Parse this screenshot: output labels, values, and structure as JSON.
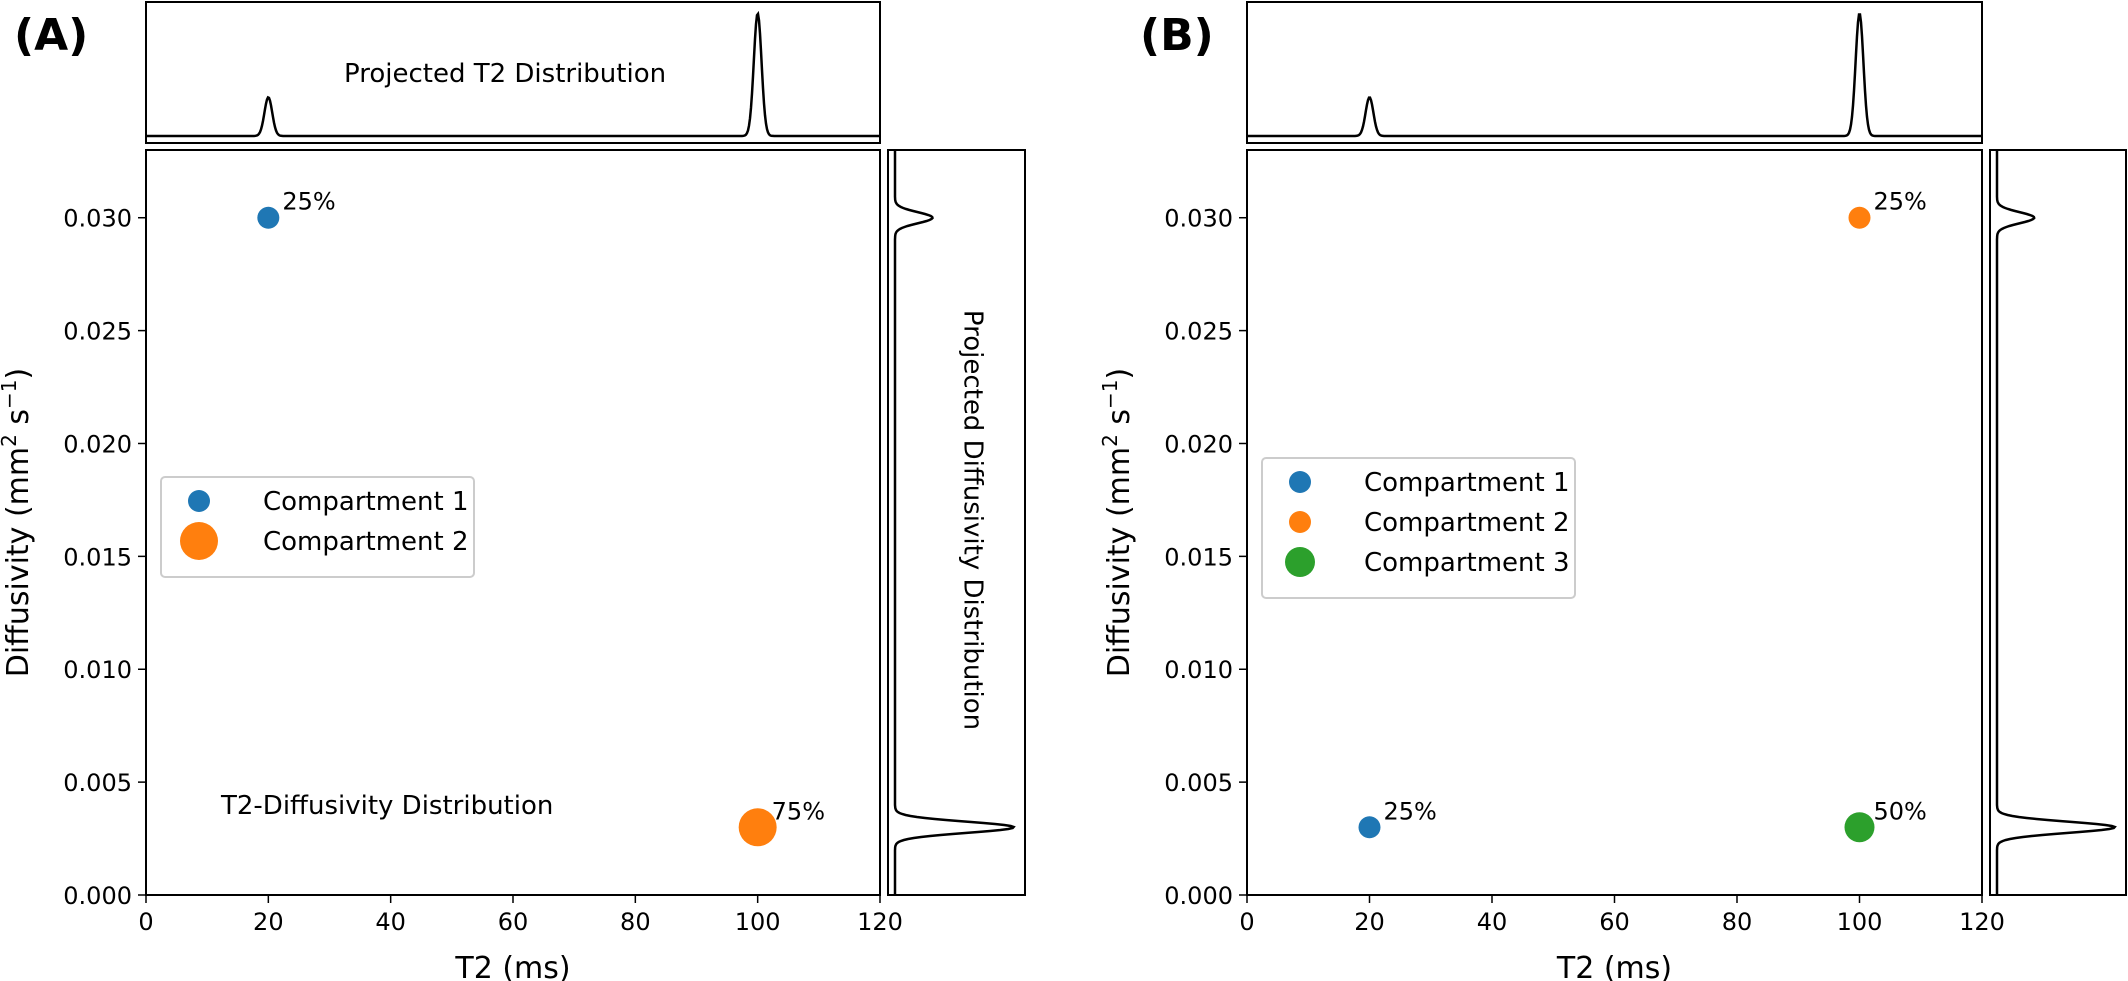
{
  "chart_data": [
    {
      "type": "scatter",
      "panel_label": "(A)",
      "xlabel": "T2 (ms)",
      "ylabel_main": "Diffusivity (mm",
      "ylabel_sup1": "2",
      "ylabel_mid": " s",
      "ylabel_sup2": "−1",
      "ylabel_end": ")",
      "xlim": [
        0,
        120
      ],
      "ylim": [
        0,
        0.033
      ],
      "xticks": [
        "0",
        "20",
        "40",
        "60",
        "80",
        "100",
        "120"
      ],
      "yticks": [
        "0.000",
        "0.005",
        "0.010",
        "0.015",
        "0.020",
        "0.025",
        "0.030"
      ],
      "grid": false,
      "legend_position": "center-left",
      "annotation_main": "T2-Diffusivity Distribution",
      "top_marginal_label": "Projected T2 Distribution",
      "right_marginal_label": "Projected Diffusivity Distribution",
      "series": [
        {
          "name": "Compartment 1",
          "color": "#1f77b4",
          "x": 20,
          "y": 0.03,
          "fraction": 0.25,
          "label": "25%"
        },
        {
          "name": "Compartment 2",
          "color": "#ff7f0e",
          "x": 100,
          "y": 0.003,
          "fraction": 0.75,
          "label": "75%"
        }
      ],
      "top_marginal_peaks": [
        {
          "x": 20,
          "height": 0.3
        },
        {
          "x": 100,
          "height": 0.95
        }
      ],
      "right_marginal_peaks": [
        {
          "y": 0.03,
          "height": 0.3
        },
        {
          "y": 0.003,
          "height": 0.95
        }
      ]
    },
    {
      "type": "scatter",
      "panel_label": "(B)",
      "xlabel": "T2 (ms)",
      "ylabel_main": "Diffusivity (mm",
      "ylabel_sup1": "2",
      "ylabel_mid": " s",
      "ylabel_sup2": "−1",
      "ylabel_end": ")",
      "xlim": [
        0,
        120
      ],
      "ylim": [
        0,
        0.033
      ],
      "xticks": [
        "0",
        "20",
        "40",
        "60",
        "80",
        "100",
        "120"
      ],
      "yticks": [
        "0.000",
        "0.005",
        "0.010",
        "0.015",
        "0.020",
        "0.025",
        "0.030"
      ],
      "grid": false,
      "legend_position": "center-left",
      "annotation_main": "",
      "top_marginal_label": "",
      "right_marginal_label": "",
      "series": [
        {
          "name": "Compartment 1",
          "color": "#1f77b4",
          "x": 20,
          "y": 0.003,
          "fraction": 0.25,
          "label": "25%"
        },
        {
          "name": "Compartment 2",
          "color": "#ff7f0e",
          "x": 100,
          "y": 0.03,
          "fraction": 0.25,
          "label": "25%"
        },
        {
          "name": "Compartment 3",
          "color": "#2ca02c",
          "x": 100,
          "y": 0.003,
          "fraction": 0.5,
          "label": "50%"
        }
      ],
      "top_marginal_peaks": [
        {
          "x": 20,
          "height": 0.3
        },
        {
          "x": 100,
          "height": 0.95
        }
      ],
      "right_marginal_peaks": [
        {
          "y": 0.03,
          "height": 0.3
        },
        {
          "y": 0.003,
          "height": 0.95
        }
      ]
    }
  ]
}
